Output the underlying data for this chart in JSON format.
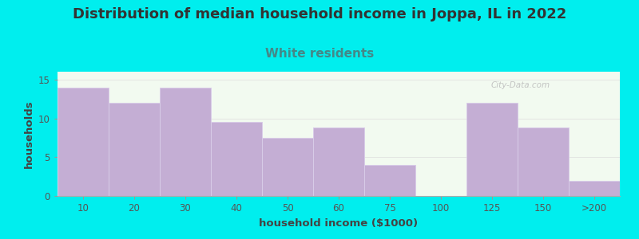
{
  "title": "Distribution of median household income in Joppa, IL in 2022",
  "subtitle": "White residents",
  "xlabel": "household income ($1000)",
  "ylabel": "households",
  "background_outer": "#00EEEE",
  "background_inner": "#f2faf0",
  "bar_color": "#c4aed4",
  "bar_edge_color": "#d8cce8",
  "title_color": "#333333",
  "subtitle_color": "#448888",
  "axis_label_color": "#444444",
  "tick_color": "#555555",
  "categories": [
    "10",
    "20",
    "30",
    "40",
    "50",
    "60",
    "75",
    "100",
    "125",
    "150",
    ">200"
  ],
  "values": [
    14,
    12,
    14,
    9.5,
    7.5,
    8.8,
    4,
    0,
    12,
    8.8,
    2
  ],
  "ylim": [
    0,
    16
  ],
  "yticks": [
    0,
    5,
    10,
    15
  ],
  "title_fontsize": 13,
  "subtitle_fontsize": 11,
  "label_fontsize": 9.5,
  "tick_fontsize": 8.5,
  "watermark": "City-Data.com"
}
